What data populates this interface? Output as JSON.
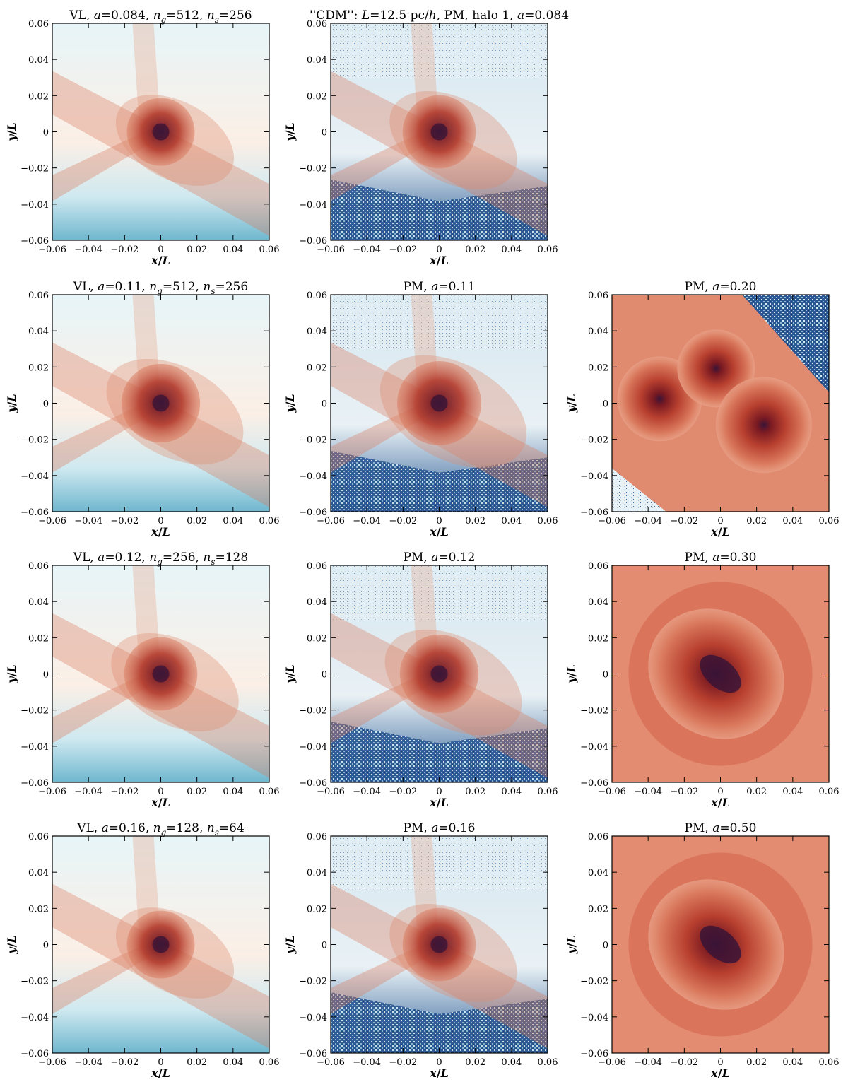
{
  "figure": {
    "axis_labels": {
      "x": "x/L",
      "y": "y/L"
    },
    "ticks": [
      "-0.06",
      "-0.04",
      "-0.02",
      "0",
      "0.02",
      "0.04",
      "0.06"
    ],
    "tick_values": [
      -0.06,
      -0.04,
      -0.02,
      0,
      0.02,
      0.04,
      0.06
    ],
    "panels": [
      {
        "id": "vl-a0084",
        "method": "VL",
        "a": "0.084",
        "title": "VL, a=0.084, n_g=512, n_s=256",
        "title_parts": {
          "label": "VL",
          "a": "0.084",
          "ng": "512",
          "ns": "256"
        }
      },
      {
        "id": "cdm-a0084",
        "method": "PM",
        "a": "0.084",
        "title": "\"CDM\": L=12.5 pc/h, PM, halo 1, a=0.084",
        "title_parts": {
          "quote_open": "''",
          "cdm": "CDM",
          "quote_close": "''",
          "L": "12.5",
          "units": "pc/h",
          "method": "PM",
          "halo": "halo 1",
          "a": "0.084"
        }
      },
      {
        "id": "vl-a011",
        "method": "VL",
        "a": "0.11",
        "title": "VL, a=0.11, n_g=512, n_s=256",
        "title_parts": {
          "label": "VL",
          "a": "0.11",
          "ng": "512",
          "ns": "256"
        }
      },
      {
        "id": "pm-a011",
        "method": "PM",
        "a": "0.11",
        "title": "PM, a=0.11",
        "title_parts": {
          "label": "PM",
          "a": "0.11"
        }
      },
      {
        "id": "pm-a020",
        "method": "PM",
        "a": "0.20",
        "title": "PM, a=0.20",
        "title_parts": {
          "label": "PM",
          "a": "0.20"
        }
      },
      {
        "id": "vl-a012",
        "method": "VL",
        "a": "0.12",
        "title": "VL, a=0.12, n_g=256, n_s=128",
        "title_parts": {
          "label": "VL",
          "a": "0.12",
          "ng": "256",
          "ns": "128"
        }
      },
      {
        "id": "pm-a012",
        "method": "PM",
        "a": "0.12",
        "title": "PM, a=0.12",
        "title_parts": {
          "label": "PM",
          "a": "0.12"
        }
      },
      {
        "id": "pm-a030",
        "method": "PM",
        "a": "0.30",
        "title": "PM, a=0.30",
        "title_parts": {
          "label": "PM",
          "a": "0.30"
        }
      },
      {
        "id": "vl-a016",
        "method": "VL",
        "a": "0.16",
        "title": "VL, a=0.16, n_g=128, n_s=64",
        "title_parts": {
          "label": "VL",
          "a": "0.16",
          "ng": "128",
          "ns": "64"
        }
      },
      {
        "id": "pm-a016",
        "method": "PM",
        "a": "0.16",
        "title": "PM, a=0.16",
        "title_parts": {
          "label": "PM",
          "a": "0.16"
        }
      },
      {
        "id": "pm-a050",
        "method": "PM",
        "a": "0.50",
        "title": "PM, a=0.50",
        "title_parts": {
          "label": "PM",
          "a": "0.50"
        }
      }
    ],
    "colors": {
      "void_blue": "#1f4e8c",
      "light_blue": "#a9d8e6",
      "pale": "#fbe9df",
      "red": "#c0392b",
      "dark_core": "#3a1436"
    }
  }
}
